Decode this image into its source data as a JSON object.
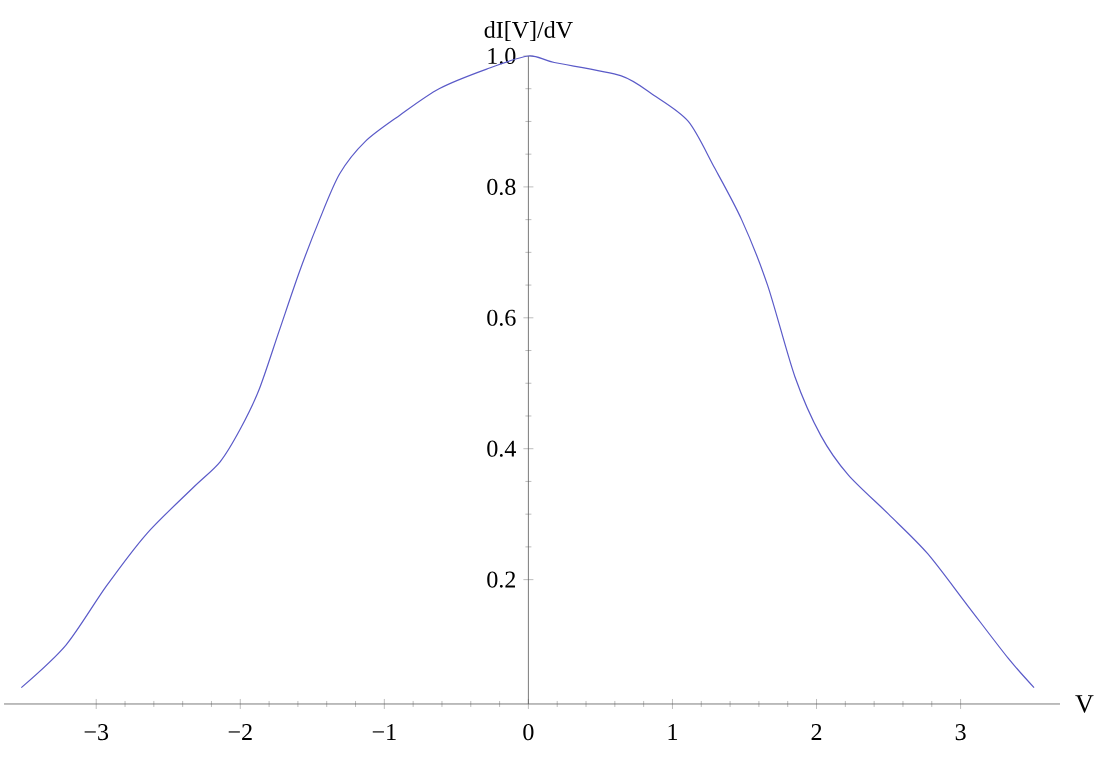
{
  "chart_data": {
    "type": "line",
    "xlabel": "V",
    "ylabel": "dI[V]/dV",
    "xlim": [
      -3.64,
      3.69
    ],
    "ylim": [
      0.01,
      1.0
    ],
    "xticks": [
      {
        "value": -3,
        "label": "−3"
      },
      {
        "value": -2,
        "label": "−2"
      },
      {
        "value": -1,
        "label": "−1"
      },
      0,
      1,
      2,
      3
    ],
    "yticks": [
      0.2,
      0.4,
      0.6,
      0.8,
      {
        "value": 1.0,
        "label": "1.0"
      }
    ],
    "grid": false,
    "marker": "none",
    "line_style": "solid",
    "series": [
      {
        "color": "#5a5ac8",
        "x": [
          -3.52,
          -3.21,
          -2.93,
          -2.65,
          -2.33,
          -2.14,
          -2.0,
          -1.87,
          -1.73,
          -1.59,
          -1.45,
          -1.31,
          -1.13,
          -0.89,
          -0.62,
          -0.29,
          0,
          0.18,
          0.64,
          0.87,
          1.11,
          1.29,
          1.48,
          1.66,
          1.85,
          2.03,
          2.22,
          2.5,
          2.77,
          3.05,
          3.33,
          3.51
        ],
        "values": [
          0.035,
          0.1,
          0.19,
          0.27,
          0.34,
          0.38,
          0.43,
          0.49,
          0.58,
          0.67,
          0.75,
          0.82,
          0.87,
          0.91,
          0.95,
          0.98,
          1.0,
          0.99,
          0.97,
          0.94,
          0.9,
          0.83,
          0.75,
          0.65,
          0.51,
          0.42,
          0.36,
          0.3,
          0.24,
          0.16,
          0.08,
          0.035
        ]
      }
    ]
  }
}
